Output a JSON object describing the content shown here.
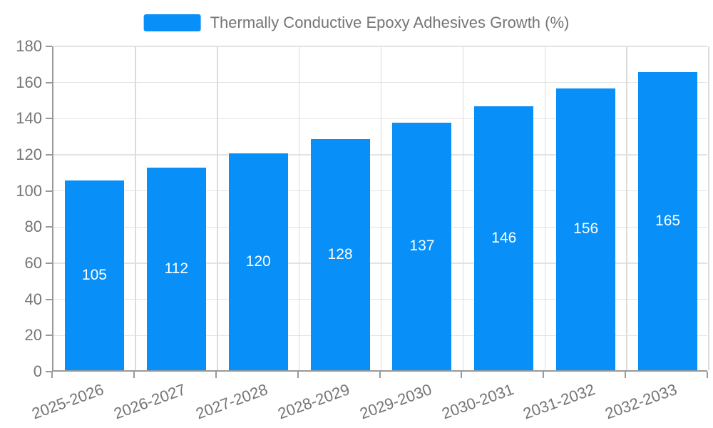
{
  "legend": {
    "label": "Thermally Conductive Epoxy Adhesives Growth (%)"
  },
  "chart_data": {
    "type": "bar",
    "title": "Thermally Conductive Epoxy Adhesives Growth (%)",
    "categories": [
      "2025-2026",
      "2026-2027",
      "2027-2028",
      "2028-2029",
      "2029-2030",
      "2030-2031",
      "2031-2032",
      "2032-2033"
    ],
    "values": [
      105,
      112,
      120,
      128,
      137,
      146,
      156,
      165
    ],
    "xlabel": "",
    "ylabel": "",
    "ylim": [
      0,
      180
    ],
    "ytick_step": 20,
    "yticks": [
      0,
      20,
      40,
      60,
      80,
      100,
      120,
      140,
      160,
      180
    ],
    "grid": true,
    "legend_position": "top-center",
    "bar_label_position": "inside-center",
    "x_label_rotation_deg": -20
  },
  "colors": {
    "bar": "#0890f8",
    "bar_label": "#ffffff",
    "grid_h": "#e3e3e3",
    "grid_v": "#dcdcdc",
    "axis": "#999999",
    "tick_text": "#757575"
  }
}
